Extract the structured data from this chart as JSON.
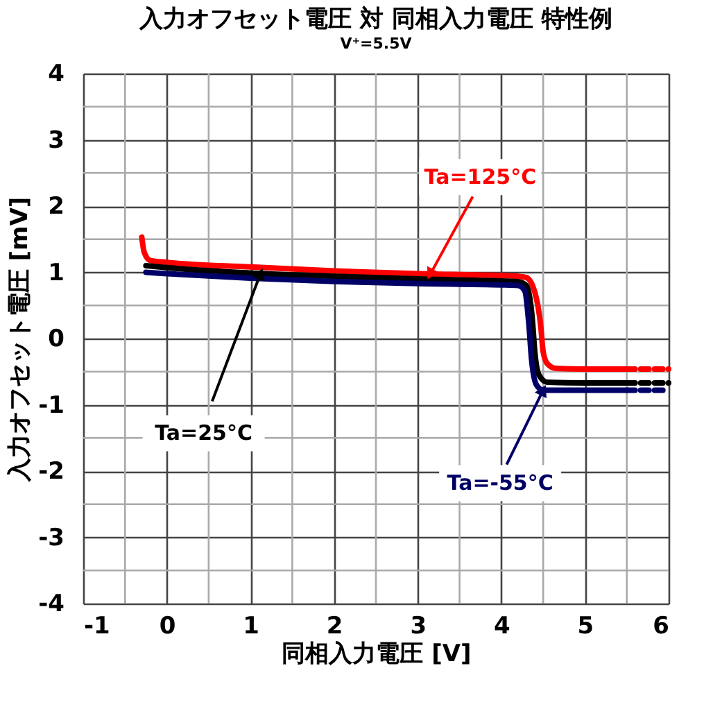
{
  "chart_data": {
    "type": "line",
    "title": "入力オフセット電圧 対 同相入力電圧 特性例",
    "subtitle": "V⁺=5.5V",
    "xlabel": "同相入力電圧 [V]",
    "ylabel": "入力オフセット電圧 [mV]",
    "xlim": [
      -1,
      6
    ],
    "xticks": [
      -1,
      0,
      1,
      2,
      3,
      4,
      5,
      6
    ],
    "ylim": [
      -4,
      4
    ],
    "yticks": [
      -4,
      -3,
      -2,
      -1,
      0,
      1,
      2,
      3,
      4
    ],
    "grid": true,
    "marker": "none",
    "series": [
      {
        "color": "#ff0000",
        "line_style": "solid",
        "x": [
          -0.3,
          -0.27,
          -0.2,
          0,
          1,
          2,
          3,
          4,
          4.2,
          4.3,
          4.4,
          4.47,
          4.5,
          4.55,
          4.65,
          5,
          5.5
        ],
        "values": [
          1.53,
          1.3,
          1.18,
          1.15,
          1.08,
          1.02,
          0.98,
          0.95,
          0.94,
          0.92,
          0.7,
          0.2,
          -0.2,
          -0.38,
          -0.45,
          -0.46,
          -0.46
        ]
      },
      {
        "color": "#000000",
        "line_style": "solid",
        "x": [
          -0.25,
          0,
          1,
          2,
          3,
          4,
          4.2,
          4.3,
          4.37,
          4.4,
          4.45,
          4.55,
          5,
          5.5
        ],
        "values": [
          1.1,
          1.07,
          0.99,
          0.94,
          0.9,
          0.87,
          0.86,
          0.8,
          0.3,
          -0.2,
          -0.55,
          -0.66,
          -0.67,
          -0.67
        ]
      },
      {
        "color": "#000066",
        "line_style": "solid",
        "x": [
          -0.25,
          0,
          1,
          2,
          3,
          4,
          4.2,
          4.28,
          4.33,
          4.36,
          4.42,
          4.5,
          5,
          5.5
        ],
        "values": [
          1.0,
          0.98,
          0.91,
          0.86,
          0.83,
          0.81,
          0.8,
          0.72,
          0.2,
          -0.3,
          -0.7,
          -0.78,
          -0.78,
          -0.78
        ]
      },
      {
        "color": "#ff0000",
        "line_style": "dashed",
        "x": [
          5.5,
          6
        ],
        "values": [
          -0.46,
          -0.46
        ]
      },
      {
        "color": "#000000",
        "line_style": "dashed",
        "x": [
          5.5,
          6
        ],
        "values": [
          -0.67,
          -0.67
        ]
      },
      {
        "color": "#000066",
        "line_style": "dashed",
        "x": [
          5.5,
          5.95
        ],
        "values": [
          -0.78,
          -0.78
        ]
      }
    ],
    "annotations": [
      {
        "text": "Ta=125°C",
        "x": 3.15,
        "y": 0.97
      },
      {
        "text": "Ta=25°C",
        "x": 1.12,
        "y": 0.98
      },
      {
        "text": "Ta=-55°C",
        "x": 4.5,
        "y": -0.78
      }
    ]
  }
}
